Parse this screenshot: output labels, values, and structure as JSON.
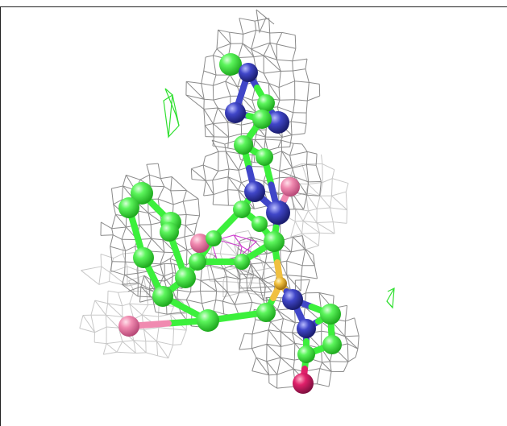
{
  "viewer": {
    "background": "#ffffff",
    "colors": {
      "carbon": "#3cf03c",
      "nitrogen": "#3a3fb8",
      "oxygen": "#f07aa0",
      "oxygen_dark": "#e0206a",
      "sulfur": "#f0c040",
      "density_mesh": "#8a8a8a",
      "density_mesh_light": "#c8c8c8",
      "difference_mesh_green": "#30e030",
      "difference_mesh_magenta": "#d040d0"
    }
  }
}
